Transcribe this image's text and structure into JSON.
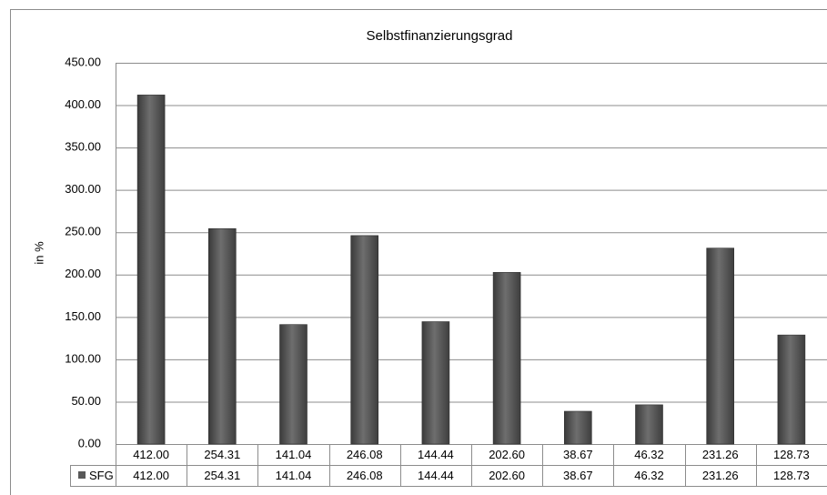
{
  "chart_data": {
    "type": "bar",
    "title": "Selbstfinanzierungsgrad",
    "y_label": "in %",
    "categories": [
      "412.00",
      "254.31",
      "141.04",
      "246.08",
      "144.44",
      "202.60",
      "38.67",
      "46.32",
      "231.26",
      "128.73"
    ],
    "series": [
      {
        "name": "SFG",
        "color": "#595959",
        "values": [
          412.0,
          254.31,
          141.04,
          246.08,
          144.44,
          202.6,
          38.67,
          46.32,
          231.26,
          128.73
        ],
        "value_labels": [
          "412.00",
          "254.31",
          "141.04",
          "246.08",
          "144.44",
          "202.60",
          "38.67",
          "46.32",
          "231.26",
          "128.73"
        ]
      }
    ],
    "ylim": [
      0,
      450
    ],
    "yticks": [
      {
        "value": 0,
        "label": "0.00"
      },
      {
        "value": 50,
        "label": "50.00"
      },
      {
        "value": 100,
        "label": "100.00"
      },
      {
        "value": 150,
        "label": "150.00"
      },
      {
        "value": 200,
        "label": "200.00"
      },
      {
        "value": 250,
        "label": "250.00"
      },
      {
        "value": 300,
        "label": "300.00"
      },
      {
        "value": 350,
        "label": "350.00"
      },
      {
        "value": 400,
        "label": "400.00"
      },
      {
        "value": 450,
        "label": "450.00"
      }
    ],
    "grid": true
  }
}
